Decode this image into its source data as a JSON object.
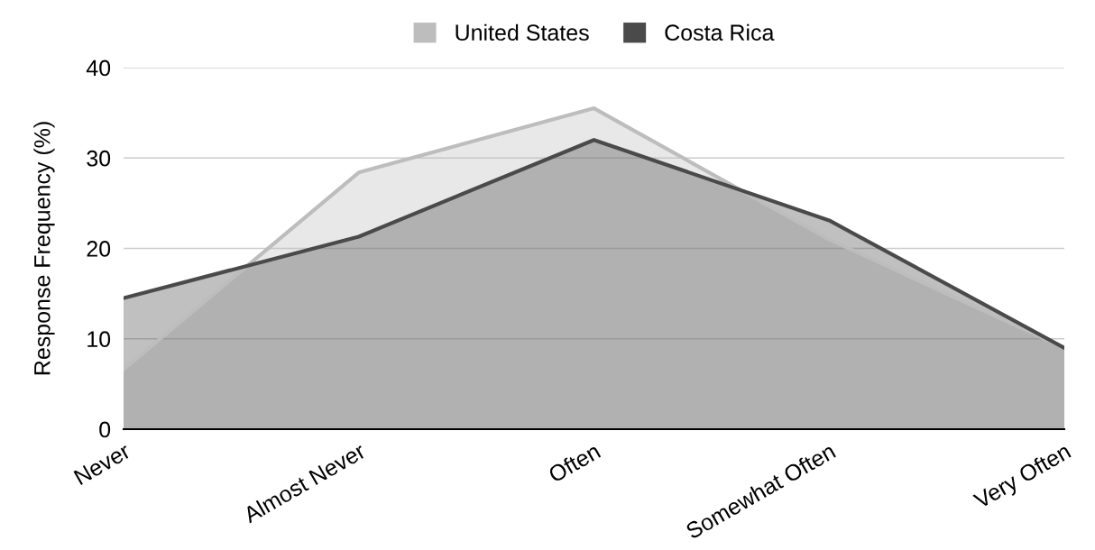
{
  "chart_data": {
    "type": "area",
    "ylabel": "Response Frequency (%)",
    "categories": [
      "Never",
      "Almost Never",
      "Often",
      "Somewhat Often",
      "Very Often"
    ],
    "series": [
      {
        "name": "United States",
        "color": "#bdbdbd",
        "values": [
          6.6,
          28.4,
          35.5,
          21.0,
          9.0
        ]
      },
      {
        "name": "Costa Rica",
        "color": "#4a4a4a",
        "values": [
          14.5,
          21.3,
          32.0,
          23.1,
          9.0
        ]
      }
    ],
    "ylim": [
      0,
      40
    ],
    "yticks": [
      0,
      10,
      20,
      30,
      40
    ],
    "grid": "y",
    "legend": "top"
  }
}
